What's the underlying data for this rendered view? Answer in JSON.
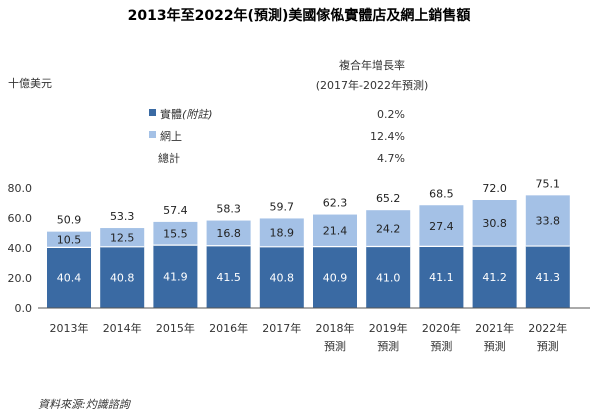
{
  "chart_data": {
    "type": "bar",
    "title": "2013年至2022年(預測)美國傢俬實體店及網上銷售額",
    "ylabel": "十億美元",
    "ylim": [
      0,
      80
    ],
    "yticks": [
      "0.0",
      "20.0",
      "40.0",
      "60.0",
      "80.0"
    ],
    "categories": [
      {
        "year": "2013年",
        "note": ""
      },
      {
        "year": "2014年",
        "note": ""
      },
      {
        "year": "2015年",
        "note": ""
      },
      {
        "year": "2016年",
        "note": ""
      },
      {
        "year": "2017年",
        "note": ""
      },
      {
        "year": "2018年",
        "note": "預測"
      },
      {
        "year": "2019年",
        "note": "預測"
      },
      {
        "year": "2020年",
        "note": "預測"
      },
      {
        "year": "2021年",
        "note": "預測"
      },
      {
        "year": "2022年",
        "note": "預測"
      }
    ],
    "series": [
      {
        "name": "實體(附註)",
        "color": "#3a6aa3",
        "values": [
          40.4,
          40.8,
          41.9,
          41.5,
          40.8,
          40.9,
          41.0,
          41.1,
          41.2,
          41.3
        ]
      },
      {
        "name": "網上",
        "color": "#a4c1e6",
        "values": [
          10.5,
          12.5,
          15.5,
          16.8,
          18.9,
          21.4,
          24.2,
          27.4,
          30.8,
          33.8
        ]
      }
    ],
    "totals": [
      50.9,
      53.3,
      57.4,
      58.3,
      59.7,
      62.3,
      65.2,
      68.5,
      72.0,
      75.1
    ],
    "legend": {
      "header_line1": "複合年增長率",
      "header_line2": "(2017年-2022年預測)",
      "items": [
        {
          "label": "實體",
          "label_suffix": "(附註)",
          "rate": "0.2%",
          "color": "#3a6aa3"
        },
        {
          "label": "網上",
          "label_suffix": "",
          "rate": "12.4%",
          "color": "#a4c1e6"
        },
        {
          "label": "總計",
          "label_suffix": "",
          "rate": "4.7%",
          "color": ""
        }
      ]
    },
    "source": "資料來源:灼識諮詢"
  }
}
